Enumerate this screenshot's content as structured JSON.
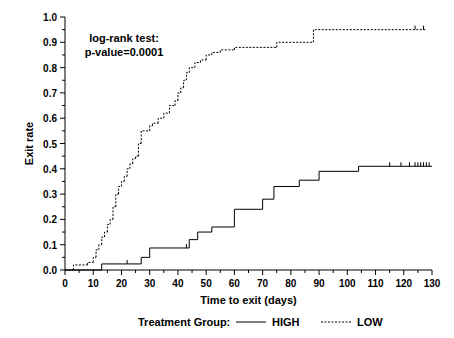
{
  "chart_data": {
    "type": "step",
    "annotation": [
      "log-rank test:",
      "p-value=0.0001"
    ],
    "x_label": "Time to exit (days)",
    "y_label": "Exit rate",
    "legend_title": "Treatment Group:",
    "xlim": [
      0,
      130
    ],
    "ylim": [
      0,
      1
    ],
    "xticks": [
      0,
      10,
      20,
      30,
      40,
      50,
      60,
      70,
      80,
      90,
      100,
      110,
      120,
      130
    ],
    "yticks": [
      {
        "value": 0,
        "label": "0.0"
      },
      {
        "value": 0.1,
        "label": "0.1"
      },
      {
        "value": 0.2,
        "label": "0.2"
      },
      {
        "value": 0.3,
        "label": "0.3"
      },
      {
        "value": 0.4,
        "label": "0.4"
      },
      {
        "value": 0.5,
        "label": "0.5"
      },
      {
        "value": 0.6,
        "label": "0.6"
      },
      {
        "value": 0.7,
        "label": "0.7"
      },
      {
        "value": 0.8,
        "label": "0.8"
      },
      {
        "value": 0.9,
        "label": "0.9"
      },
      {
        "value": 1,
        "label": "1.0"
      }
    ],
    "series": [
      {
        "name": "HIGH",
        "color": "#000000",
        "line_style": "solid",
        "x": [
          0,
          13,
          27,
          30,
          44,
          47,
          52,
          60,
          70,
          74,
          83,
          90,
          104,
          130
        ],
        "values": [
          0,
          0.024,
          0.05,
          0.087,
          0.12,
          0.15,
          0.17,
          0.24,
          0.28,
          0.33,
          0.355,
          0.39,
          0.41,
          0.41
        ],
        "censored": [
          22,
          43,
          115,
          119,
          122,
          124,
          125,
          126,
          127,
          128,
          129
        ]
      },
      {
        "name": "LOW",
        "color": "#000000",
        "line_style": "dotted",
        "x": [
          0,
          3,
          8,
          10,
          11,
          12,
          13,
          14,
          15,
          16,
          17,
          18,
          19,
          20,
          21,
          22,
          23,
          24,
          25,
          26,
          27,
          30,
          31,
          33,
          35,
          37,
          39,
          40,
          41,
          42,
          43,
          44,
          46,
          48,
          50,
          52,
          55,
          60,
          75,
          88,
          128
        ],
        "values": [
          0,
          0.02,
          0.03,
          0.05,
          0.08,
          0.1,
          0.13,
          0.15,
          0.18,
          0.2,
          0.25,
          0.3,
          0.33,
          0.35,
          0.37,
          0.4,
          0.42,
          0.44,
          0.45,
          0.5,
          0.55,
          0.57,
          0.58,
          0.6,
          0.62,
          0.65,
          0.67,
          0.7,
          0.72,
          0.75,
          0.78,
          0.8,
          0.82,
          0.83,
          0.85,
          0.86,
          0.87,
          0.88,
          0.9,
          0.95,
          0.95
        ],
        "censored": [
          124,
          127
        ]
      }
    ]
  }
}
